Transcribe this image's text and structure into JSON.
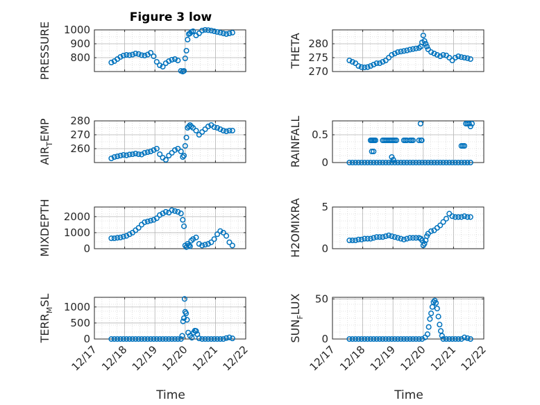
{
  "figure": {
    "title": "Figure 3 low"
  },
  "colors": {
    "marker": "#0072BD",
    "axis": "#262626",
    "grid": "#c8c8c8",
    "background": "#ffffff"
  },
  "chart_data": [
    {
      "type": "scatter",
      "ylabel": "PRESSURE",
      "title": "Figure 3 low",
      "ylim": [
        700,
        1000
      ],
      "yticks": [
        800,
        900,
        1000
      ],
      "ytick_labels": [
        "800",
        "900",
        "1000"
      ],
      "x": [
        17.56,
        17.66,
        17.76,
        17.86,
        17.96,
        18.06,
        18.16,
        18.26,
        18.36,
        18.46,
        18.56,
        18.66,
        18.76,
        18.86,
        18.96,
        19.06,
        19.16,
        19.26,
        19.36,
        19.46,
        19.56,
        19.66,
        19.76,
        19.86,
        19.92,
        19.96,
        20.0,
        20.04,
        20.08,
        20.12,
        20.16,
        20.2,
        20.26,
        20.36,
        20.46,
        20.56,
        20.66,
        20.76,
        20.86,
        20.96,
        21.06,
        21.16,
        21.26,
        21.36,
        21.46,
        21.56
      ],
      "y": [
        765,
        775,
        790,
        805,
        815,
        820,
        818,
        822,
        830,
        826,
        818,
        815,
        822,
        835,
        810,
        770,
        745,
        735,
        760,
        775,
        785,
        790,
        780,
        705,
        700,
        705,
        795,
        850,
        930,
        970,
        975,
        985,
        990,
        960,
        975,
        995,
        1000,
        998,
        995,
        990,
        985,
        980,
        975,
        970,
        975,
        980
      ]
    },
    {
      "type": "scatter",
      "ylabel": "THETA",
      "ylim": [
        270,
        285
      ],
      "yticks": [
        270,
        275,
        280
      ],
      "ytick_labels": [
        "270",
        "275",
        "280"
      ],
      "x": [
        17.56,
        17.66,
        17.76,
        17.86,
        17.96,
        18.06,
        18.16,
        18.26,
        18.36,
        18.46,
        18.56,
        18.66,
        18.76,
        18.86,
        18.96,
        19.06,
        19.16,
        19.26,
        19.36,
        19.46,
        19.56,
        19.66,
        19.76,
        19.86,
        19.92,
        19.96,
        20.0,
        20.04,
        20.08,
        20.12,
        20.16,
        20.26,
        20.36,
        20.46,
        20.56,
        20.66,
        20.76,
        20.86,
        20.96,
        21.06,
        21.16,
        21.26,
        21.36,
        21.46,
        21.56
      ],
      "y": [
        274,
        273.5,
        273,
        272,
        271.6,
        271.5,
        271.6,
        272,
        272.5,
        273,
        273,
        273.5,
        274,
        275,
        276,
        276.5,
        277,
        277.2,
        277.4,
        277.6,
        277.9,
        278.1,
        278.3,
        278.5,
        279,
        280.5,
        283,
        281,
        280,
        279,
        278,
        277,
        276.5,
        276,
        275.5,
        276,
        275.8,
        275,
        274,
        275,
        275.5,
        275.2,
        275,
        274.8,
        274.5
      ]
    },
    {
      "type": "scatter",
      "ylabel": "AIR_TEMP",
      "ylim": [
        250,
        280
      ],
      "yticks": [
        260,
        270,
        280
      ],
      "ytick_labels": [
        "260",
        "270",
        "280"
      ],
      "x": [
        17.56,
        17.66,
        17.76,
        17.86,
        17.96,
        18.06,
        18.16,
        18.26,
        18.36,
        18.46,
        18.56,
        18.66,
        18.76,
        18.86,
        18.96,
        19.06,
        19.16,
        19.26,
        19.36,
        19.46,
        19.56,
        19.66,
        19.76,
        19.86,
        19.92,
        19.96,
        20.0,
        20.04,
        20.08,
        20.12,
        20.16,
        20.2,
        20.26,
        20.36,
        20.46,
        20.56,
        20.66,
        20.76,
        20.86,
        20.96,
        21.06,
        21.16,
        21.26,
        21.36,
        21.46,
        21.56
      ],
      "y": [
        253,
        254,
        254.5,
        255,
        255.5,
        255.2,
        255.8,
        256,
        256.5,
        256,
        255.8,
        257,
        257.5,
        258,
        259,
        260,
        256,
        253.5,
        252,
        255,
        257,
        259,
        260,
        258,
        254,
        255,
        262,
        268,
        275,
        276,
        277,
        276,
        275,
        273,
        270,
        272,
        274,
        276,
        277,
        275.5,
        275,
        274,
        273,
        272.5,
        273,
        273
      ]
    },
    {
      "type": "scatter",
      "ylabel": "RAINFALL",
      "ylim": [
        0,
        0.75
      ],
      "yticks": [
        0,
        0.5
      ],
      "ytick_labels": [
        "0",
        "0.5"
      ],
      "x": [
        17.56,
        17.66,
        17.76,
        17.86,
        17.96,
        18.06,
        18.16,
        18.26,
        18.36,
        18.46,
        18.56,
        18.66,
        18.76,
        18.86,
        18.96,
        19.06,
        19.16,
        19.26,
        19.36,
        19.46,
        19.56,
        19.66,
        19.76,
        19.86,
        19.96,
        20.06,
        20.16,
        20.26,
        20.36,
        20.46,
        20.56,
        20.66,
        20.76,
        20.86,
        20.96,
        21.06,
        21.16,
        21.26,
        21.36,
        21.46,
        21.56,
        18.26,
        18.3,
        18.34,
        18.38,
        18.42,
        18.3,
        18.36,
        18.66,
        18.71,
        18.76,
        18.81,
        18.86,
        18.91,
        18.96,
        19.01,
        19.06,
        19.11,
        18.96,
        19.01,
        19.36,
        19.41,
        19.46,
        19.56,
        19.61,
        19.66,
        19.86,
        19.91,
        19.93,
        19.95,
        21.26,
        21.31,
        21.36,
        21.41,
        21.46,
        21.51,
        21.56,
        21.61
      ],
      "y": [
        0,
        0,
        0,
        0,
        0,
        0,
        0,
        0,
        0,
        0,
        0,
        0,
        0,
        0,
        0,
        0,
        0,
        0,
        0,
        0,
        0,
        0,
        0,
        0,
        0,
        0,
        0,
        0,
        0,
        0,
        0,
        0,
        0,
        0,
        0,
        0,
        0,
        0,
        0,
        0,
        0,
        0.4,
        0.4,
        0.4,
        0.4,
        0.4,
        0.2,
        0.2,
        0.4,
        0.4,
        0.4,
        0.4,
        0.4,
        0.4,
        0.4,
        0.4,
        0.4,
        0.4,
        0.1,
        0.05,
        0.4,
        0.4,
        0.4,
        0.4,
        0.4,
        0.4,
        0.4,
        0.7,
        0.4,
        0.4,
        0.3,
        0.3,
        0.3,
        0.7,
        0.7,
        0.7,
        0.65,
        0.7
      ]
    },
    {
      "type": "scatter",
      "ylabel": "MIXDEPTH",
      "ylim": [
        0,
        2600
      ],
      "yticks": [
        0,
        1000,
        2000
      ],
      "ytick_labels": [
        "0",
        "1000",
        "2000"
      ],
      "x": [
        17.56,
        17.66,
        17.76,
        17.86,
        17.96,
        18.06,
        18.16,
        18.26,
        18.36,
        18.46,
        18.56,
        18.66,
        18.76,
        18.86,
        18.96,
        19.06,
        19.16,
        19.26,
        19.36,
        19.46,
        19.56,
        19.66,
        19.76,
        19.86,
        19.92,
        19.96,
        20.0,
        20.04,
        20.08,
        20.12,
        20.16,
        20.2,
        20.26,
        20.36,
        20.46,
        20.56,
        20.66,
        20.76,
        20.86,
        20.96,
        21.06,
        21.16,
        21.26,
        21.36,
        21.46,
        21.56
      ],
      "y": [
        650,
        650,
        680,
        700,
        750,
        800,
        900,
        1000,
        1150,
        1300,
        1500,
        1650,
        1700,
        1750,
        1800,
        1900,
        2100,
        2200,
        2300,
        2250,
        2400,
        2350,
        2300,
        2200,
        1800,
        1400,
        200,
        100,
        300,
        200,
        150,
        500,
        600,
        700,
        300,
        200,
        250,
        300,
        400,
        600,
        900,
        1100,
        1000,
        800,
        400,
        200
      ]
    },
    {
      "type": "scatter",
      "ylabel": "H2OMIXRA",
      "ylim": [
        0,
        5
      ],
      "yticks": [
        0,
        5
      ],
      "ytick_labels": [
        "0",
        "5"
      ],
      "x": [
        17.56,
        17.66,
        17.76,
        17.86,
        17.96,
        18.06,
        18.16,
        18.26,
        18.36,
        18.46,
        18.56,
        18.66,
        18.76,
        18.86,
        18.96,
        19.06,
        19.16,
        19.26,
        19.36,
        19.46,
        19.56,
        19.66,
        19.76,
        19.86,
        19.92,
        19.96,
        20.0,
        20.04,
        20.08,
        20.12,
        20.16,
        20.26,
        20.36,
        20.46,
        20.56,
        20.66,
        20.76,
        20.86,
        20.96,
        21.06,
        21.16,
        21.26,
        21.36,
        21.46,
        21.56
      ],
      "y": [
        1,
        1,
        1,
        1.1,
        1.1,
        1.2,
        1.2,
        1.2,
        1.3,
        1.4,
        1.4,
        1.4,
        1.5,
        1.6,
        1.5,
        1.4,
        1.3,
        1.2,
        1.1,
        1.2,
        1.3,
        1.3,
        1.3,
        1.3,
        1.2,
        1,
        0.4,
        0.6,
        1,
        1.5,
        1.8,
        2.1,
        2.2,
        2.5,
        2.8,
        3.2,
        3.6,
        4.2,
        3.9,
        3.8,
        3.8,
        3.8,
        3.9,
        3.8,
        3.8
      ]
    },
    {
      "type": "scatter",
      "ylabel": "TERR_MSL",
      "ylim": [
        0,
        1300
      ],
      "yticks": [
        0,
        500,
        1000
      ],
      "ytick_labels": [
        "0",
        "500",
        "1000"
      ],
      "x": [
        17.56,
        17.66,
        17.76,
        17.86,
        17.96,
        18.06,
        18.16,
        18.26,
        18.36,
        18.46,
        18.56,
        18.66,
        18.76,
        18.86,
        18.96,
        19.06,
        19.16,
        19.26,
        19.36,
        19.46,
        19.56,
        19.66,
        19.76,
        19.86,
        19.9,
        19.93,
        19.96,
        19.98,
        20.0,
        20.03,
        20.06,
        20.1,
        20.16,
        20.22,
        20.28,
        20.32,
        20.36,
        20.4,
        20.46,
        20.56,
        20.66,
        20.76,
        20.86,
        20.96,
        21.06,
        21.16,
        21.26,
        21.36,
        21.46,
        21.56
      ],
      "y": [
        0,
        0,
        0,
        0,
        0,
        0,
        0,
        0,
        0,
        0,
        0,
        0,
        0,
        0,
        0,
        0,
        0,
        0,
        0,
        0,
        0,
        0,
        0,
        0,
        100,
        550,
        650,
        1250,
        850,
        800,
        600,
        200,
        100,
        40,
        200,
        260,
        250,
        150,
        20,
        0,
        0,
        0,
        0,
        0,
        0,
        0,
        0,
        30,
        50,
        20
      ]
    },
    {
      "type": "scatter",
      "ylabel": "SUN_FLUX",
      "ylim": [
        0,
        52
      ],
      "yticks": [
        0,
        50
      ],
      "ytick_labels": [
        "0",
        "50"
      ],
      "x": [
        17.56,
        17.66,
        17.76,
        17.86,
        17.96,
        18.06,
        18.16,
        18.26,
        18.36,
        18.46,
        18.56,
        18.66,
        18.76,
        18.86,
        18.96,
        19.06,
        19.16,
        19.26,
        19.36,
        19.46,
        19.56,
        19.66,
        19.76,
        19.86,
        19.96,
        20.06,
        20.14,
        20.18,
        20.22,
        20.26,
        20.3,
        20.34,
        20.38,
        20.42,
        20.46,
        20.5,
        20.54,
        20.58,
        20.62,
        20.66,
        20.76,
        20.86,
        20.96,
        21.06,
        21.16,
        21.26,
        21.36,
        21.46,
        21.56
      ],
      "y": [
        0,
        0,
        0,
        0,
        0,
        0,
        0,
        0,
        0,
        0,
        0,
        0,
        0,
        0,
        0,
        0,
        0,
        0,
        0,
        0,
        0,
        0,
        0,
        0,
        0,
        2,
        6,
        15,
        25,
        32,
        40,
        46,
        48,
        45,
        38,
        28,
        18,
        10,
        4,
        0,
        0,
        0,
        0,
        0,
        0,
        0,
        2,
        1,
        0
      ]
    }
  ],
  "shared_x": {
    "xlim": [
      17,
      22
    ],
    "ticks": [
      17,
      18,
      19,
      20,
      21,
      22
    ],
    "tick_labels": [
      "12/17",
      "12/18",
      "12/19",
      "12/20",
      "12/21",
      "12/22"
    ],
    "xlabel": "Time"
  }
}
